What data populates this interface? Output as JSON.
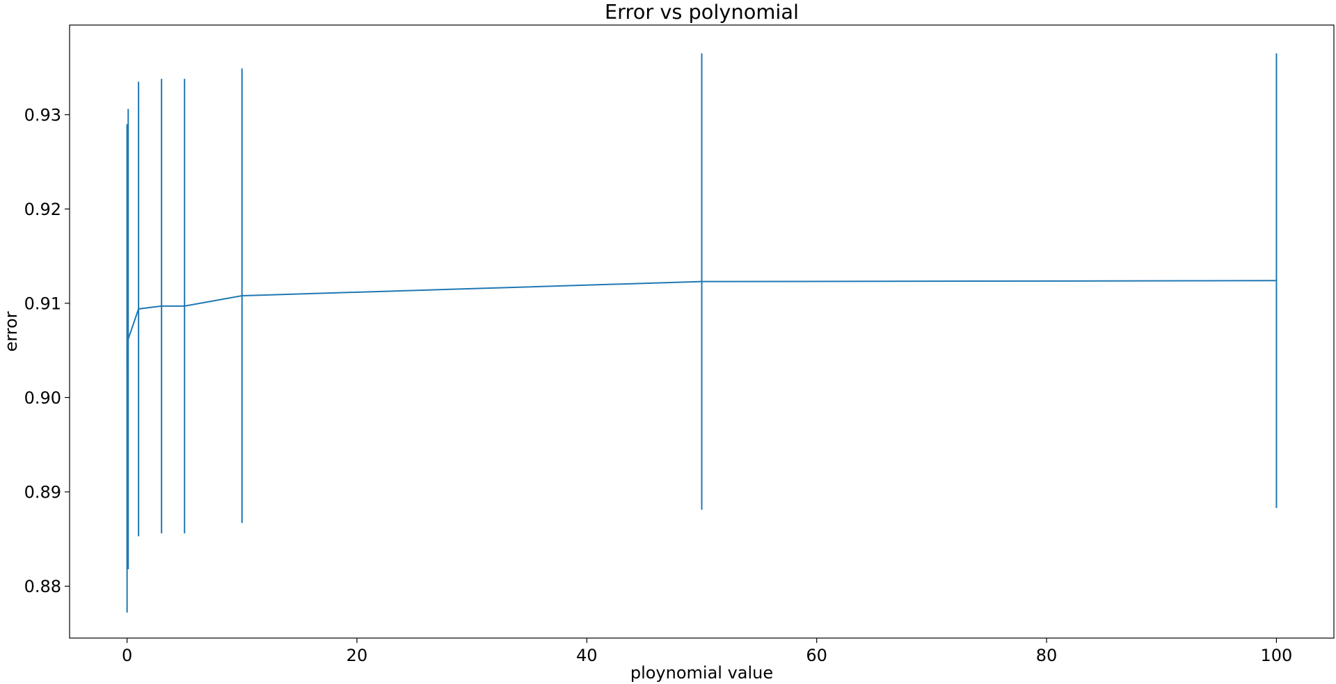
{
  "chart_data": {
    "type": "line",
    "title": "Error vs polynomial",
    "xlabel": "ploynomial value",
    "ylabel": "error",
    "xlim": [
      -5,
      105
    ],
    "ylim": [
      0.8745,
      0.9395
    ],
    "xticks": [
      0,
      20,
      40,
      60,
      80,
      100
    ],
    "xtick_labels": [
      "0",
      "20",
      "40",
      "60",
      "80",
      "100"
    ],
    "yticks": [
      0.88,
      0.89,
      0.9,
      0.91,
      0.92,
      0.93
    ],
    "ytick_labels": [
      "0.88",
      "0.89",
      "0.90",
      "0.91",
      "0.92",
      "0.93"
    ],
    "grid": false,
    "color": "#1f77b4",
    "series": [
      {
        "x": [
          0.001,
          0.01,
          0.1,
          1,
          3,
          5,
          10,
          50,
          100
        ],
        "y": [
          0.9031,
          0.9054,
          0.9062,
          0.9094,
          0.9097,
          0.9097,
          0.9108,
          0.9123,
          0.9124
        ],
        "error": [
          0.0259,
          0.0234,
          0.0244,
          0.0241,
          0.0241,
          0.0241,
          0.0241,
          0.0242,
          0.0241
        ]
      }
    ]
  }
}
